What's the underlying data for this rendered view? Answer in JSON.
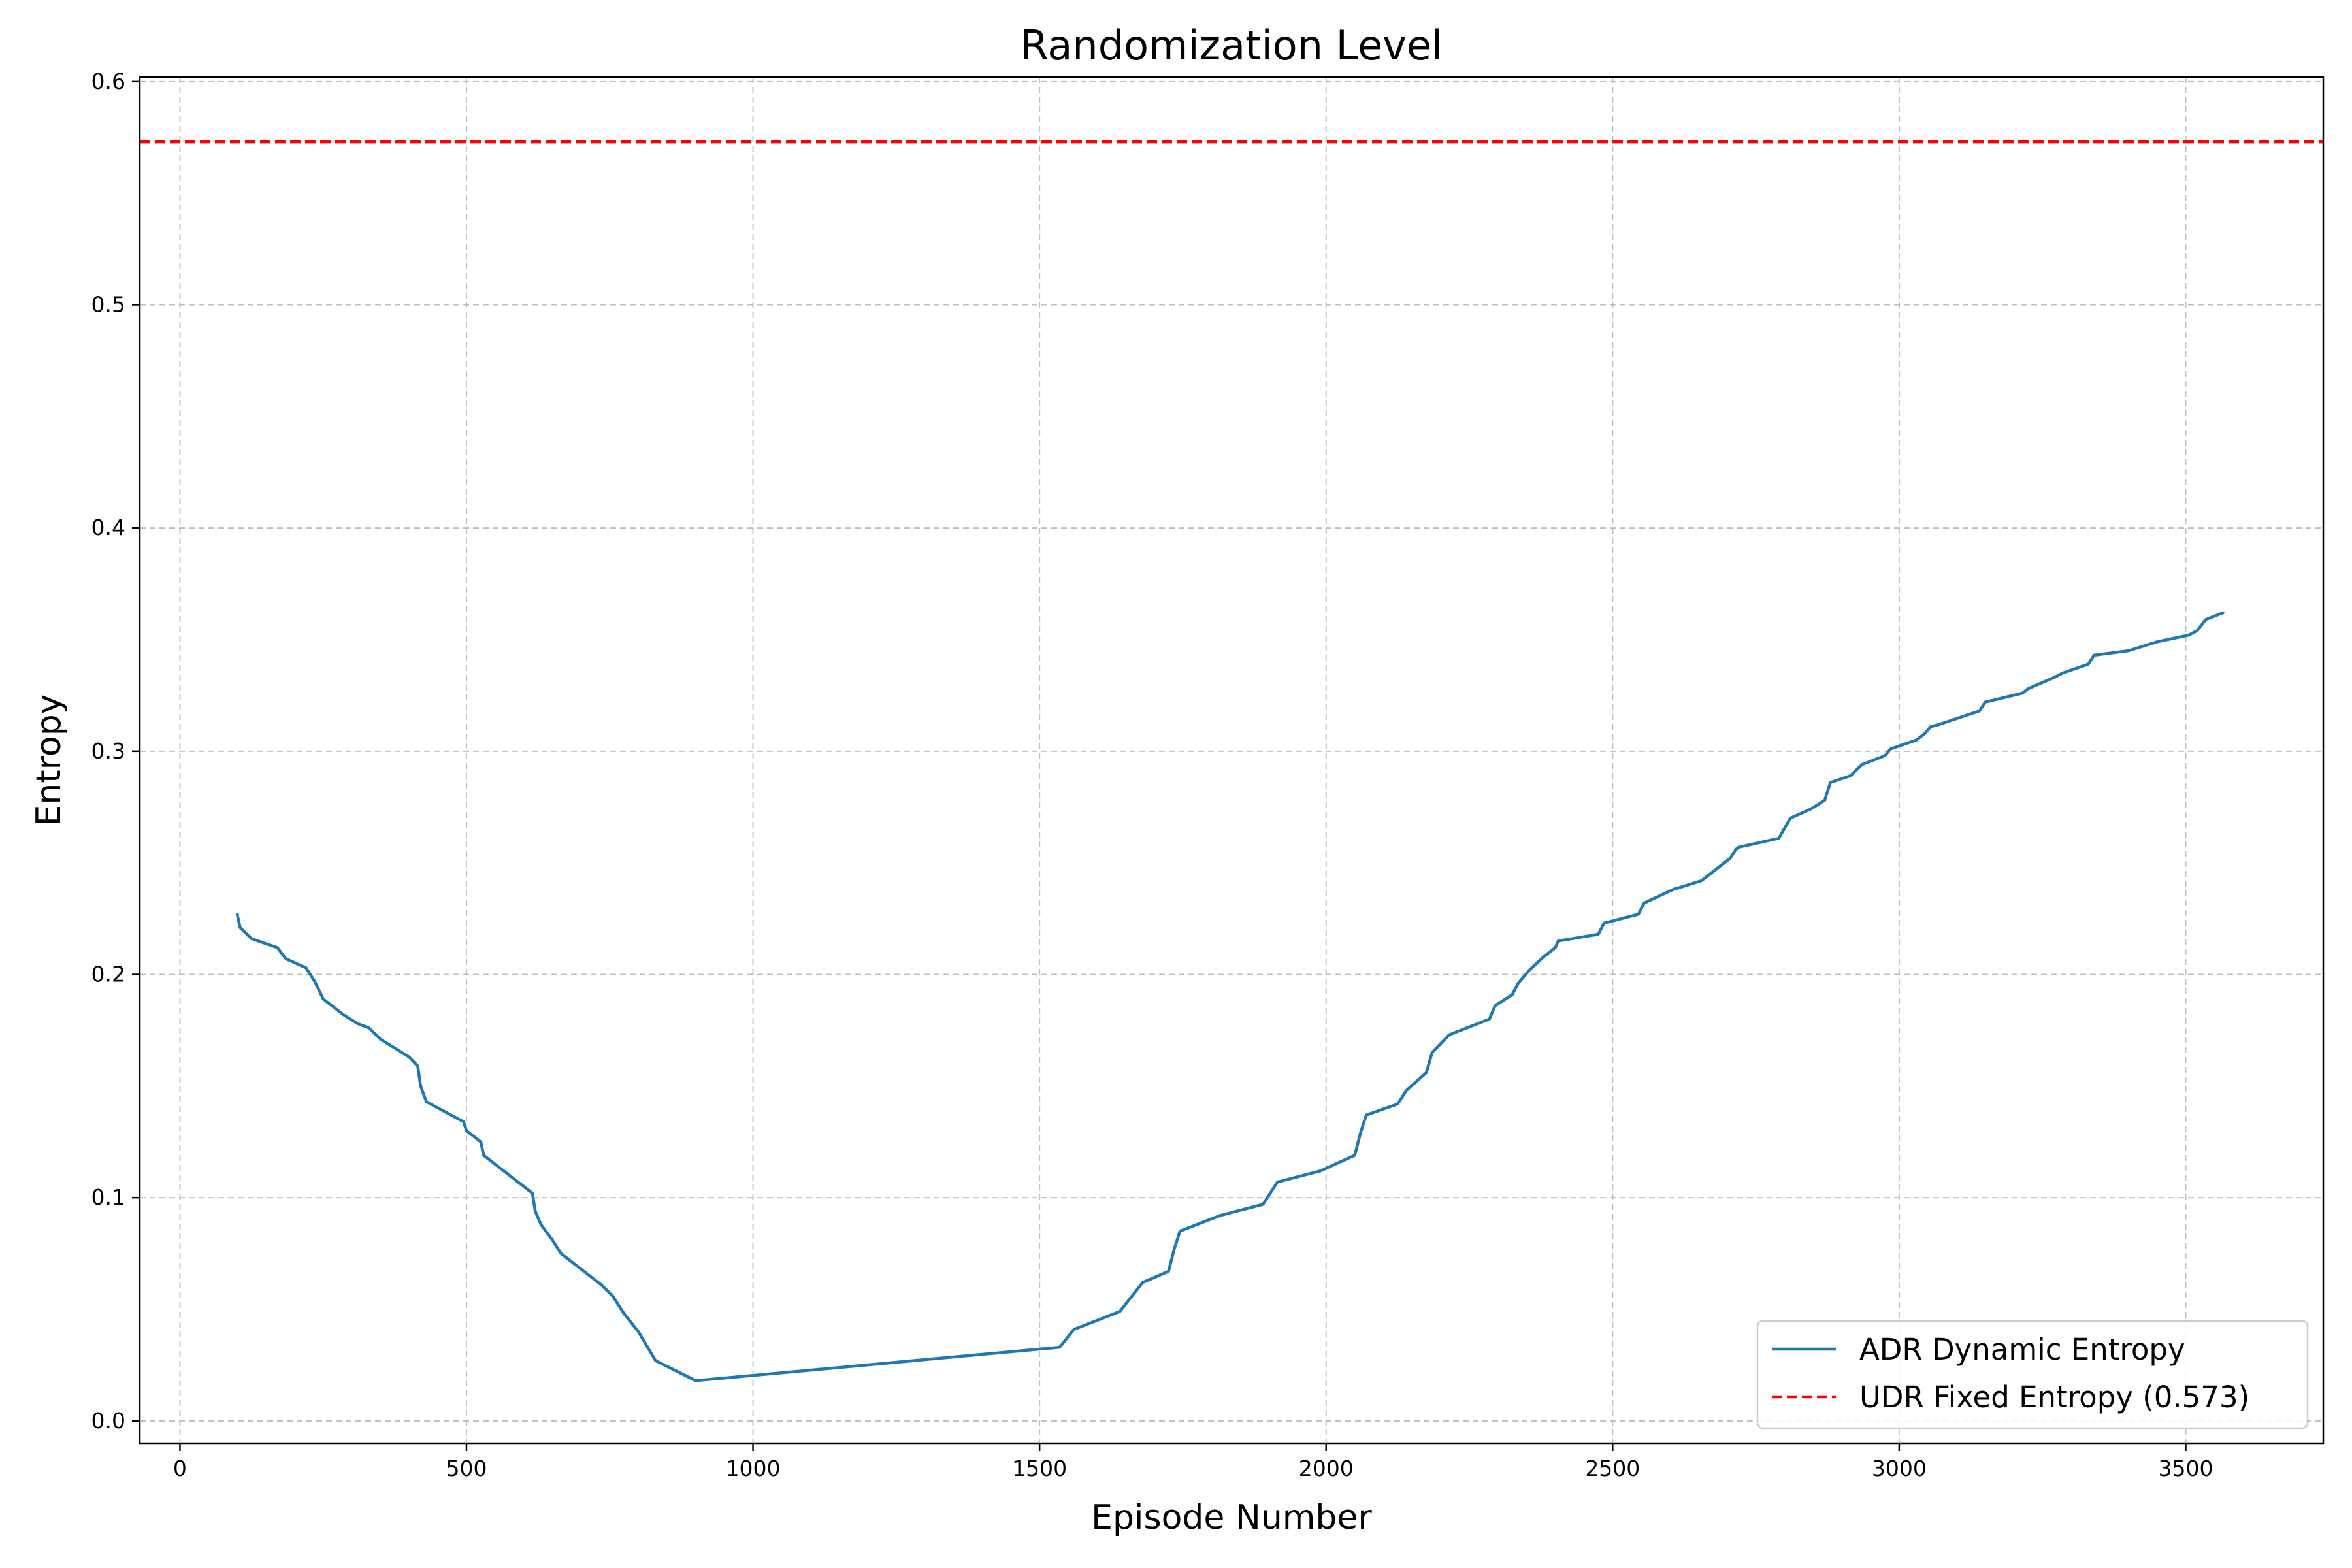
{
  "chart_data": {
    "type": "line",
    "title": "Randomization Level",
    "xlabel": "Episode Number",
    "ylabel": "Entropy",
    "xlim": [
      -70,
      3740
    ],
    "ylim": [
      -0.01,
      0.602
    ],
    "xticks": [
      0,
      500,
      1000,
      1500,
      2000,
      2500,
      3000,
      3500
    ],
    "yticks": [
      0.0,
      0.1,
      0.2,
      0.3,
      0.4,
      0.5,
      0.6
    ],
    "xtick_labels": [
      "0",
      "500",
      "1000",
      "1500",
      "2000",
      "2500",
      "3000",
      "3500"
    ],
    "ytick_labels": [
      "0.0",
      "0.1",
      "0.2",
      "0.3",
      "0.4",
      "0.5",
      "0.6"
    ],
    "grid": true,
    "legend_position": "bottom-right",
    "series": [
      {
        "name": "ADR Dynamic Entropy",
        "color": "#1f77b4",
        "style": "solid",
        "x": [
          100,
          105,
          125,
          170,
          185,
          220,
          235,
          250,
          285,
          310,
          330,
          350,
          400,
          415,
          420,
          430,
          495,
          500,
          525,
          530,
          615,
          620,
          630,
          650,
          665,
          735,
          755,
          775,
          800,
          830,
          900,
          1535,
          1560,
          1640,
          1680,
          1725,
          1735,
          1745,
          1815,
          1890,
          1915,
          1990,
          2050,
          2060,
          2070,
          2125,
          2140,
          2175,
          2185,
          2215,
          2285,
          2295,
          2325,
          2335,
          2355,
          2380,
          2400,
          2405,
          2475,
          2485,
          2545,
          2555,
          2605,
          2655,
          2675,
          2705,
          2715,
          2720,
          2790,
          2810,
          2845,
          2870,
          2880,
          2915,
          2935,
          2975,
          2985,
          3030,
          3045,
          3055,
          3070,
          3140,
          3150,
          3215,
          3225,
          3270,
          3285,
          3330,
          3340,
          3400,
          3450,
          3505,
          3520,
          3535,
          3565
        ],
        "y": [
          0.227,
          0.221,
          0.216,
          0.212,
          0.207,
          0.203,
          0.197,
          0.189,
          0.182,
          0.178,
          0.176,
          0.171,
          0.163,
          0.159,
          0.15,
          0.143,
          0.134,
          0.13,
          0.125,
          0.119,
          0.102,
          0.094,
          0.088,
          0.081,
          0.075,
          0.061,
          0.056,
          0.048,
          0.04,
          0.027,
          0.018,
          0.033,
          0.041,
          0.049,
          0.062,
          0.067,
          0.077,
          0.085,
          0.092,
          0.097,
          0.107,
          0.112,
          0.119,
          0.129,
          0.137,
          0.142,
          0.148,
          0.156,
          0.165,
          0.173,
          0.18,
          0.186,
          0.191,
          0.196,
          0.202,
          0.208,
          0.212,
          0.215,
          0.218,
          0.223,
          0.227,
          0.232,
          0.238,
          0.242,
          0.246,
          0.252,
          0.256,
          0.257,
          0.261,
          0.27,
          0.274,
          0.278,
          0.286,
          0.289,
          0.294,
          0.298,
          0.301,
          0.305,
          0.308,
          0.311,
          0.312,
          0.318,
          0.322,
          0.326,
          0.328,
          0.333,
          0.335,
          0.339,
          0.343,
          0.345,
          0.349,
          0.352,
          0.354,
          0.359,
          0.362
        ]
      },
      {
        "name": "UDR Fixed Entropy (0.573)",
        "color": "#ff0000",
        "style": "dashed",
        "constant": 0.573
      }
    ]
  }
}
